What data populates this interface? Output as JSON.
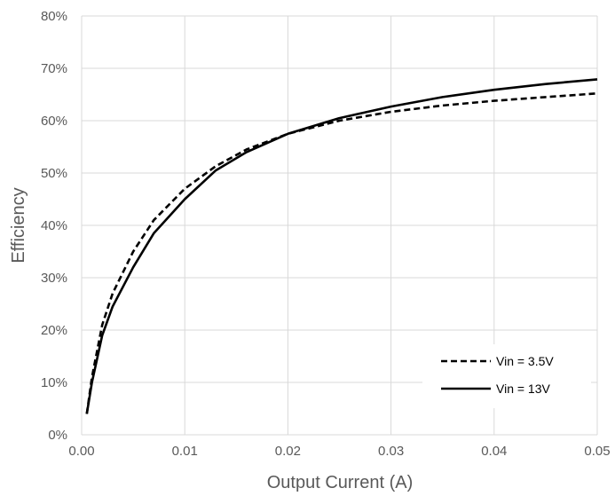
{
  "chart_data": {
    "type": "line",
    "title": "",
    "xlabel": "Output Current (A)",
    "ylabel": "Efficiency",
    "xlim": [
      0,
      0.05
    ],
    "ylim": [
      0,
      0.8
    ],
    "grid": true,
    "legend_position": "bottom-right",
    "x_ticks": [
      {
        "value": 0,
        "label": "0.00"
      },
      {
        "value": 0.01,
        "label": "0.01"
      },
      {
        "value": 0.02,
        "label": "0.02"
      },
      {
        "value": 0.03,
        "label": "0.03"
      },
      {
        "value": 0.04,
        "label": "0.04"
      },
      {
        "value": 0.05,
        "label": "0.05"
      }
    ],
    "y_ticks": [
      {
        "value": 0,
        "label": "0%"
      },
      {
        "value": 0.1,
        "label": "10%"
      },
      {
        "value": 0.2,
        "label": "20%"
      },
      {
        "value": 0.3,
        "label": "30%"
      },
      {
        "value": 0.4,
        "label": "40%"
      },
      {
        "value": 0.5,
        "label": "50%"
      },
      {
        "value": 0.6,
        "label": "60%"
      },
      {
        "value": 0.7,
        "label": "70%"
      },
      {
        "value": 0.8,
        "label": "80%"
      }
    ],
    "series": [
      {
        "name": "Vin = 3.5V",
        "style": "dashed",
        "color": "#000000",
        "x": [
          0.0005,
          0.001,
          0.002,
          0.003,
          0.005,
          0.007,
          0.01,
          0.013,
          0.016,
          0.02,
          0.025,
          0.03,
          0.035,
          0.04,
          0.045,
          0.05
        ],
        "y": [
          0.04,
          0.11,
          0.21,
          0.27,
          0.35,
          0.41,
          0.47,
          0.513,
          0.545,
          0.575,
          0.6,
          0.617,
          0.629,
          0.638,
          0.645,
          0.652
        ]
      },
      {
        "name": "Vin = 13V",
        "style": "solid",
        "color": "#000000",
        "x": [
          0.0005,
          0.001,
          0.002,
          0.003,
          0.005,
          0.007,
          0.01,
          0.013,
          0.016,
          0.02,
          0.025,
          0.03,
          0.035,
          0.04,
          0.045,
          0.05
        ],
        "y": [
          0.04,
          0.1,
          0.19,
          0.245,
          0.32,
          0.385,
          0.45,
          0.505,
          0.54,
          0.575,
          0.605,
          0.627,
          0.645,
          0.659,
          0.67,
          0.679
        ]
      }
    ]
  }
}
